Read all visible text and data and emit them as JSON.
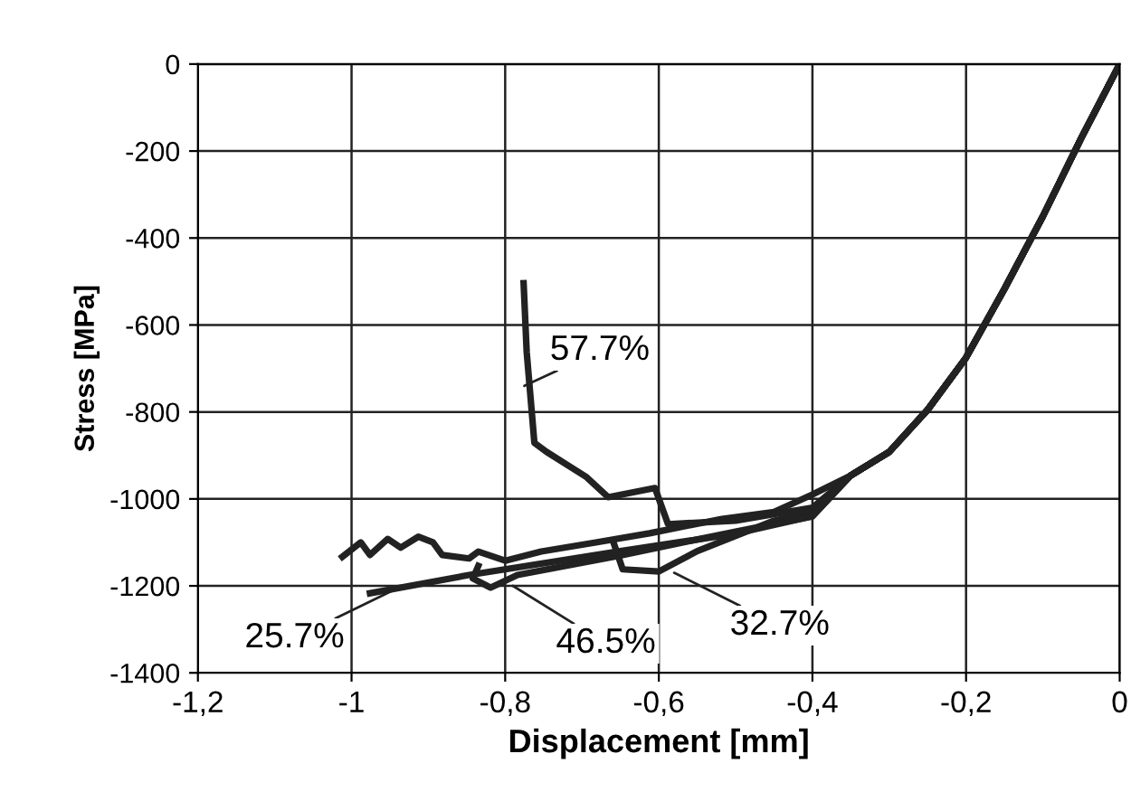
{
  "chart_data": {
    "type": "line",
    "xlabel": "Displacement [mm]",
    "ylabel": "Stress [MPa]",
    "xlim": [
      -1.2,
      0
    ],
    "ylim": [
      -1400,
      0
    ],
    "xticks": [
      {
        "value": -1.2,
        "label": "-1,2"
      },
      -1,
      {
        "value": -0.8,
        "label": "-0,8"
      },
      {
        "value": -0.6,
        "label": "-0,6"
      },
      {
        "value": -0.4,
        "label": "-0,4"
      },
      {
        "value": -0.2,
        "label": "-0,2"
      },
      0
    ],
    "yticks": [
      -1400,
      -1200,
      -1000,
      -800,
      -600,
      -400,
      -200,
      0
    ],
    "grid": true,
    "series": [
      {
        "color": "#222222",
        "x": [
          0,
          -0.05,
          -0.1,
          -0.15,
          -0.2,
          -0.25,
          -0.3,
          -0.35,
          -0.4,
          -0.45,
          -0.518,
          -0.612,
          -0.682,
          -0.753,
          -0.8,
          -0.835,
          -0.847,
          -0.882,
          -0.894,
          -0.913,
          -0.936,
          -0.953,
          -0.976,
          -0.988,
          -1.012
        ],
        "values": [
          0,
          -170,
          -350,
          -517,
          -675,
          -795,
          -892,
          -946,
          -990,
          -1030,
          -1046,
          -1079,
          -1100,
          -1121,
          -1142,
          -1121,
          -1137,
          -1129,
          -1100,
          -1087,
          -1112,
          -1092,
          -1129,
          -1100,
          -1133
        ]
      },
      {
        "color": "#222222",
        "x": [
          0,
          -0.05,
          -0.1,
          -0.15,
          -0.2,
          -0.25,
          -0.3,
          -0.35,
          -0.4,
          -0.5,
          -0.588,
          -0.605,
          -0.666,
          -0.694,
          -0.746,
          -0.762,
          -0.765,
          -0.772,
          -0.776
        ],
        "values": [
          0,
          -170,
          -350,
          -517,
          -675,
          -795,
          -892,
          -946,
          -1020,
          -1050,
          -1058,
          -975,
          -996,
          -950,
          -892,
          -871,
          -808,
          -662,
          -504
        ]
      },
      {
        "color": "#222222",
        "x": [
          0,
          -0.05,
          -0.1,
          -0.15,
          -0.2,
          -0.25,
          -0.3,
          -0.35,
          -0.4,
          -0.45,
          -0.55,
          -0.6,
          -0.647,
          -0.659
        ],
        "values": [
          0,
          -170,
          -350,
          -517,
          -675,
          -795,
          -892,
          -946,
          -1030,
          -1050,
          -1120,
          -1167,
          -1162,
          -1100
        ]
      },
      {
        "color": "#222222",
        "x": [
          0,
          -0.05,
          -0.1,
          -0.15,
          -0.2,
          -0.25,
          -0.3,
          -0.35,
          -0.4,
          -0.5,
          -0.65,
          -0.784,
          -0.819,
          -0.842,
          -0.835
        ],
        "values": [
          0,
          -170,
          -350,
          -517,
          -675,
          -795,
          -892,
          -946,
          -1040,
          -1075,
          -1130,
          -1175,
          -1204,
          -1183,
          -1154
        ]
      },
      {
        "color": "#222222",
        "x": [
          0,
          -0.05,
          -0.1,
          -0.15,
          -0.2,
          -0.25,
          -0.3,
          -0.35,
          -0.4,
          -0.5,
          -0.65,
          -0.847,
          -0.976
        ],
        "values": [
          0,
          -170,
          -350,
          -517,
          -675,
          -795,
          -892,
          -946,
          -1040,
          -1080,
          -1120,
          -1175,
          -1217
        ]
      }
    ],
    "annotations": [
      {
        "text": "57.7%",
        "x": -0.775,
        "y": -740
      },
      {
        "text": "46.5%",
        "x": -0.79,
        "y": -1200
      },
      {
        "text": "32.7%",
        "x": -0.58,
        "y": -1170
      },
      {
        "text": "25.7%",
        "x": -0.94,
        "y": -1205
      }
    ]
  }
}
